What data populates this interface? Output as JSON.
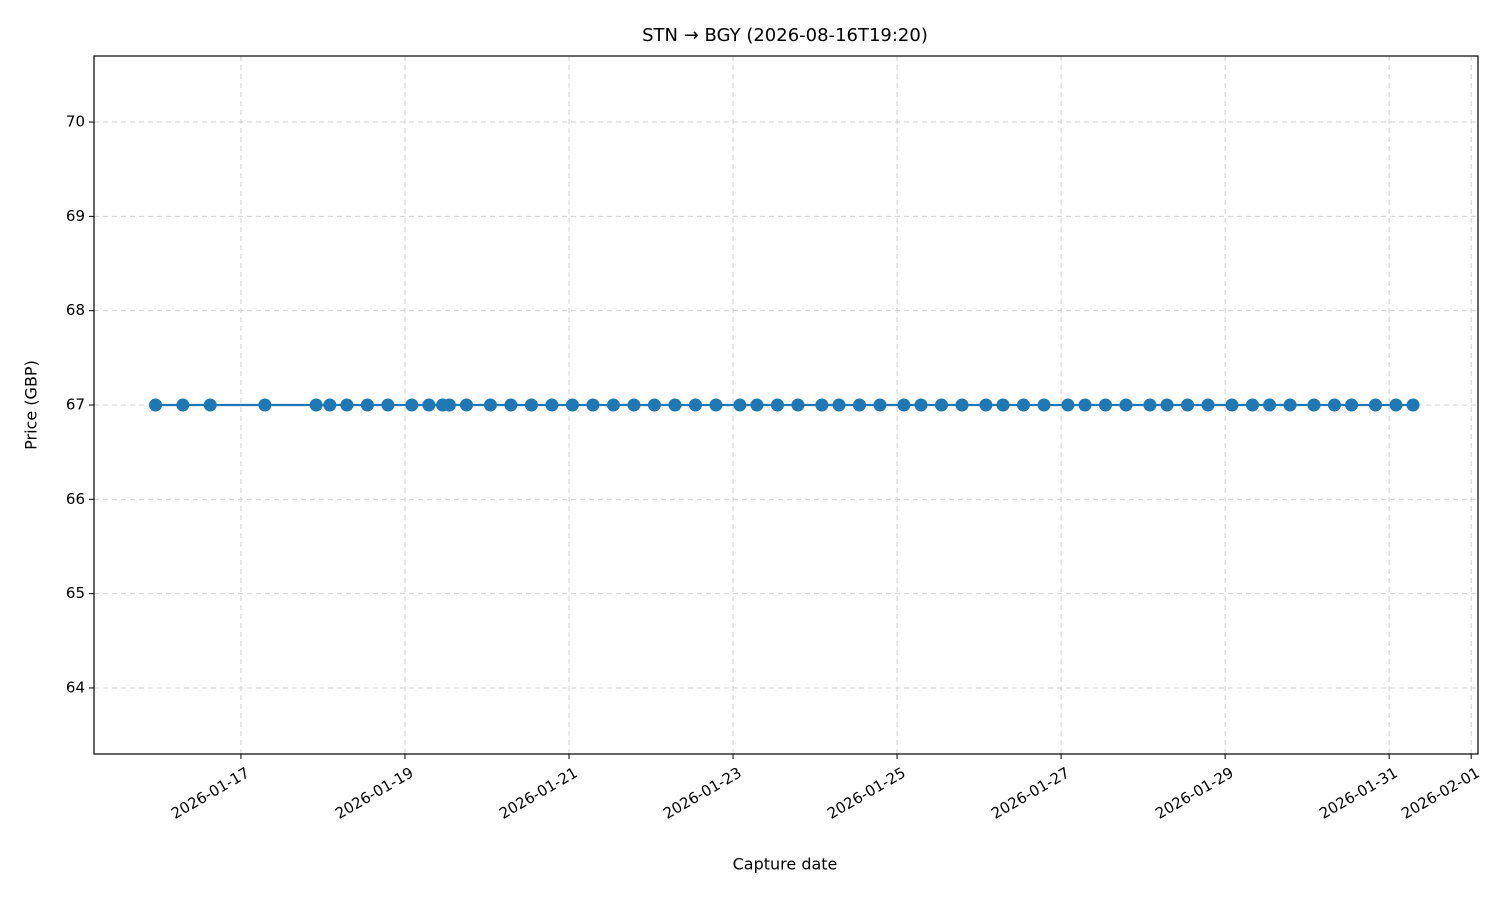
{
  "chart_data": {
    "type": "line",
    "title": "STN → BGY (2026-08-16T19:20)",
    "x_label": "Capture date",
    "y_label": "Price (GBP)",
    "color": "#1f77b4",
    "grid": true,
    "x": [
      "2026-01-15T23:00",
      "2026-01-16T07:00",
      "2026-01-16T15:00",
      "2026-01-17T07:00",
      "2026-01-17T22:00",
      "2026-01-18T02:00",
      "2026-01-18T07:00",
      "2026-01-18T13:00",
      "2026-01-18T19:00",
      "2026-01-19T02:00",
      "2026-01-19T07:00",
      "2026-01-19T11:00",
      "2026-01-19T13:00",
      "2026-01-19T18:00",
      "2026-01-20T01:00",
      "2026-01-20T07:00",
      "2026-01-20T13:00",
      "2026-01-20T19:00",
      "2026-01-21T01:00",
      "2026-01-21T07:00",
      "2026-01-21T13:00",
      "2026-01-21T19:00",
      "2026-01-22T01:00",
      "2026-01-22T07:00",
      "2026-01-22T13:00",
      "2026-01-22T19:00",
      "2026-01-23T02:00",
      "2026-01-23T07:00",
      "2026-01-23T13:00",
      "2026-01-23T19:00",
      "2026-01-24T02:00",
      "2026-01-24T07:00",
      "2026-01-24T13:00",
      "2026-01-24T19:00",
      "2026-01-25T02:00",
      "2026-01-25T07:00",
      "2026-01-25T13:00",
      "2026-01-25T19:00",
      "2026-01-26T02:00",
      "2026-01-26T07:00",
      "2026-01-26T13:00",
      "2026-01-26T19:00",
      "2026-01-27T02:00",
      "2026-01-27T07:00",
      "2026-01-27T13:00",
      "2026-01-27T19:00",
      "2026-01-28T02:00",
      "2026-01-28T07:00",
      "2026-01-28T13:00",
      "2026-01-28T19:00",
      "2026-01-29T02:00",
      "2026-01-29T08:00",
      "2026-01-29T13:00",
      "2026-01-29T19:00",
      "2026-01-30T02:00",
      "2026-01-30T08:00",
      "2026-01-30T13:00",
      "2026-01-30T20:00",
      "2026-01-31T02:00",
      "2026-01-31T07:00"
    ],
    "values": [
      67,
      67,
      67,
      67,
      67,
      67,
      67,
      67,
      67,
      67,
      67,
      67,
      67,
      67,
      67,
      67,
      67,
      67,
      67,
      67,
      67,
      67,
      67,
      67,
      67,
      67,
      67,
      67,
      67,
      67,
      67,
      67,
      67,
      67,
      67,
      67,
      67,
      67,
      67,
      67,
      67,
      67,
      67,
      67,
      67,
      67,
      67,
      67,
      67,
      67,
      67,
      67,
      67,
      67,
      67,
      67,
      67,
      67,
      67,
      67
    ],
    "xlim": [
      "2026-01-15T05:00",
      "2026-02-01T02:00"
    ],
    "xticks": [
      "2026-01-17",
      "2026-01-19",
      "2026-01-21",
      "2026-01-23",
      "2026-01-25",
      "2026-01-27",
      "2026-01-29",
      "2026-01-31",
      "2026-02-01"
    ],
    "ylim": [
      63.3,
      70.7
    ],
    "yticks": [
      64,
      65,
      66,
      67,
      68,
      69,
      70
    ]
  }
}
